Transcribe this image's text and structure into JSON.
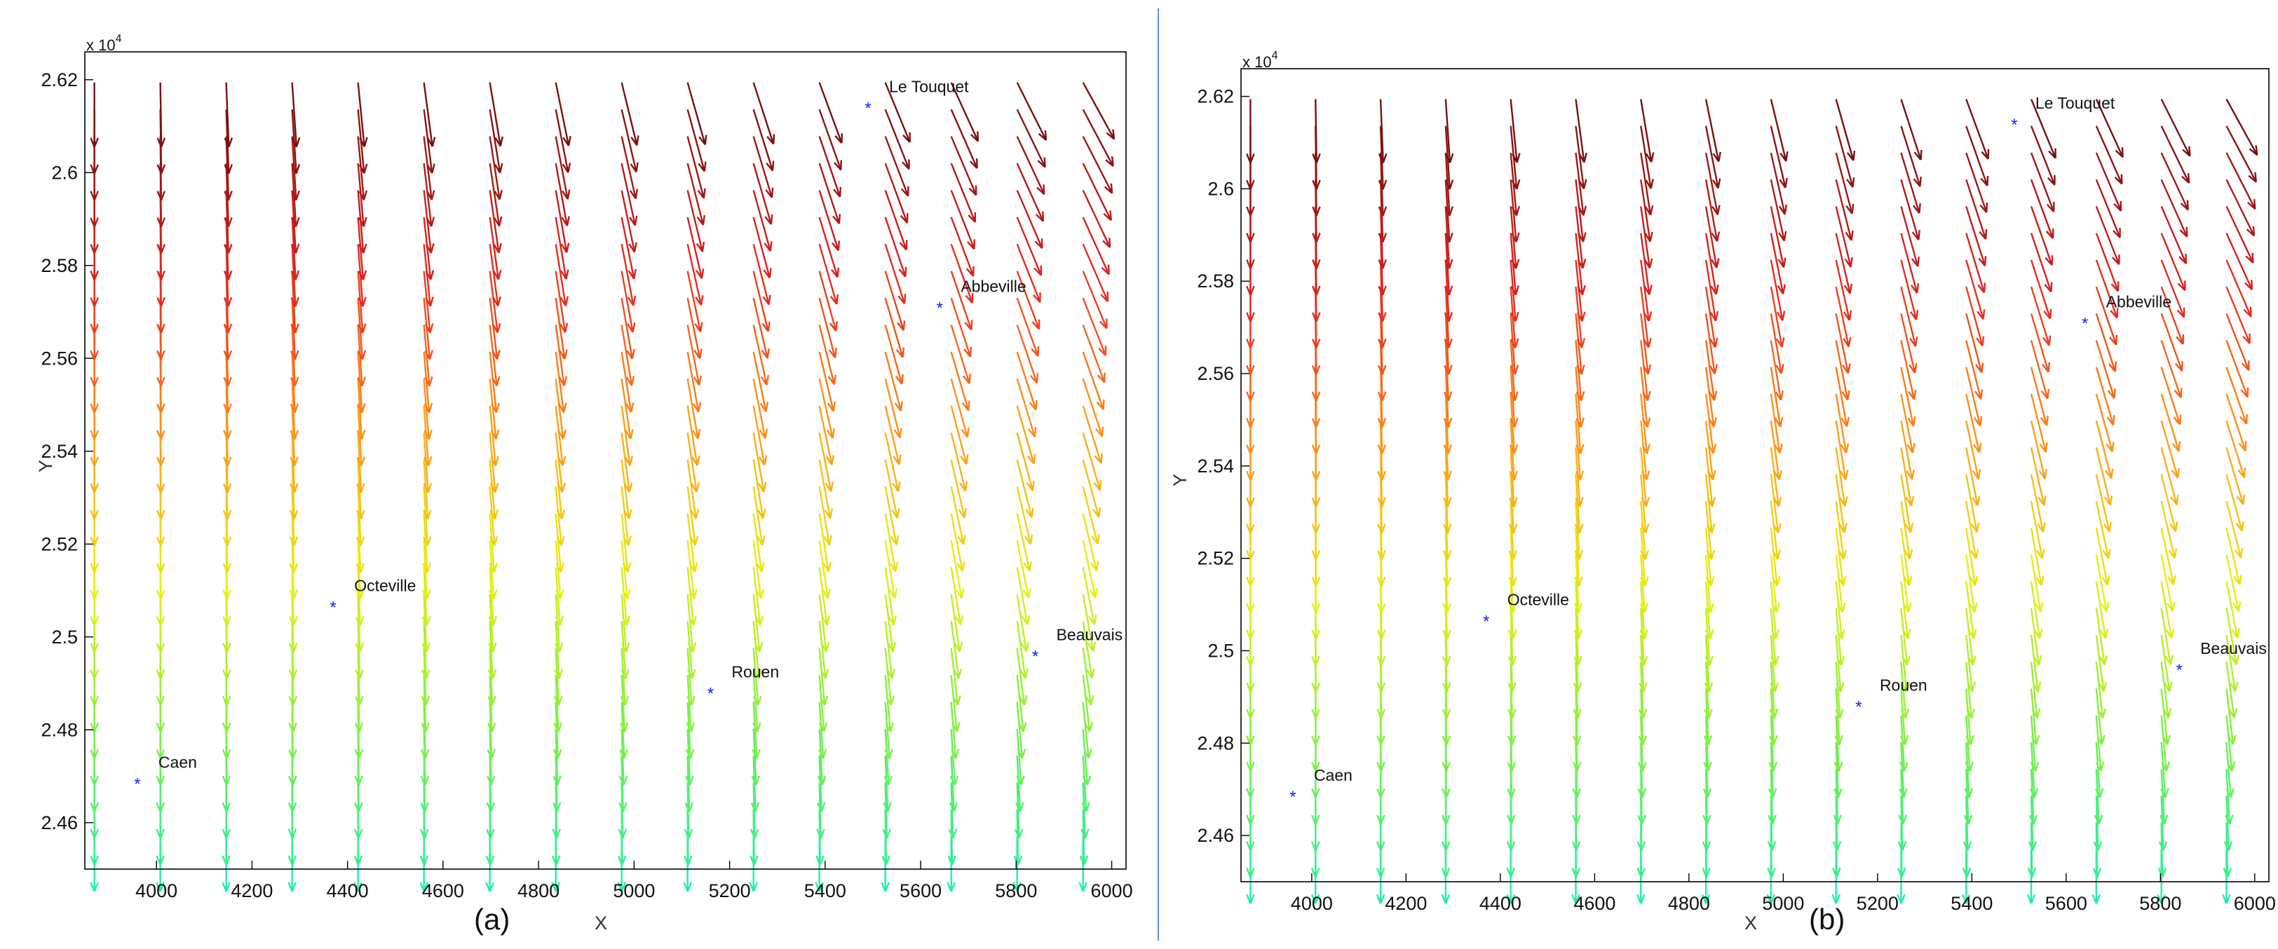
{
  "chart_data": [
    {
      "type": "quiver",
      "panel_label": "(a)",
      "xlabel": "X",
      "ylabel": "Y",
      "y_multiplier": "x 10",
      "y_multiplier_exponent": "4",
      "xlim": [
        3850,
        6030
      ],
      "ylim": [
        24500,
        26260
      ],
      "x_ticks": [
        4000,
        4200,
        4400,
        4600,
        4800,
        5000,
        5200,
        5400,
        5600,
        5800,
        6000
      ],
      "x_tick_labels": [
        "4000",
        "4200",
        "4400",
        "4600",
        "4800",
        "5000",
        "5200",
        "5400",
        "5600",
        "5800",
        "6000"
      ],
      "y_ticks": [
        24600,
        24800,
        25000,
        25200,
        25400,
        25600,
        25800,
        26000,
        26200
      ],
      "y_tick_labels": [
        "2.46",
        "2.48",
        "2.5",
        "2.52",
        "2.54",
        "2.56",
        "2.58",
        "2.6",
        "2.62"
      ],
      "grid": {
        "x0": 3870,
        "dx": 138,
        "nx": 16,
        "y0": 24570,
        "dy": 58,
        "ny": 29
      },
      "field_model": "u = 0.55*((x-3870)/2070)^1.3 * ((y-24570)/1680); v = -1; colour by y",
      "arrow_colors": [
        "#20f0a0",
        "#80f040",
        "#e8ef10",
        "#ff9418",
        "#e6231f",
        "#7a1010"
      ],
      "cities": [
        {
          "name": "Le Touquet",
          "x": 5490,
          "y": 26140
        },
        {
          "name": "Abbeville",
          "x": 5640,
          "y": 25710
        },
        {
          "name": "Octeville",
          "x": 4370,
          "y": 25065
        },
        {
          "name": "Beauvais",
          "x": 5840,
          "y": 24960
        },
        {
          "name": "Rouen",
          "x": 5160,
          "y": 24880
        },
        {
          "name": "Caen",
          "x": 3960,
          "y": 24685
        }
      ]
    },
    {
      "type": "quiver",
      "panel_label": "(b)",
      "xlabel": "X",
      "ylabel": "Y",
      "y_multiplier": "x 10",
      "y_multiplier_exponent": "4",
      "xlim": [
        3850,
        6030
      ],
      "ylim": [
        24500,
        26260
      ],
      "x_ticks": [
        4000,
        4200,
        4400,
        4600,
        4800,
        5000,
        5200,
        5400,
        5600,
        5800,
        6000
      ],
      "x_tick_labels": [
        "4000",
        "4200",
        "4400",
        "4600",
        "4800",
        "5000",
        "5200",
        "5400",
        "5600",
        "5800",
        "6000"
      ],
      "y_ticks": [
        24600,
        24800,
        25000,
        25200,
        25400,
        25600,
        25800,
        26000,
        26200
      ],
      "y_tick_labels": [
        "2.46",
        "2.48",
        "2.5",
        "2.52",
        "2.54",
        "2.56",
        "2.58",
        "2.6",
        "2.62"
      ],
      "grid": {
        "x0": 3870,
        "dx": 138,
        "nx": 16,
        "y0": 24570,
        "dy": 58,
        "ny": 29
      },
      "field_model": "u = 0.55*((x-3870)/2070)^1.3 * ((y-24570)/1680); v = -1; colour by y",
      "arrow_colors": [
        "#20f0a0",
        "#80f040",
        "#e8ef10",
        "#ff9418",
        "#e6231f",
        "#7a1010"
      ],
      "cities": [
        {
          "name": "Le Touquet",
          "x": 5490,
          "y": 26140
        },
        {
          "name": "Abbeville",
          "x": 5640,
          "y": 25710
        },
        {
          "name": "Octeville",
          "x": 4370,
          "y": 25065
        },
        {
          "name": "Beauvais",
          "x": 5840,
          "y": 24960
        },
        {
          "name": "Rouen",
          "x": 5160,
          "y": 24880
        },
        {
          "name": "Caen",
          "x": 3960,
          "y": 24685
        }
      ]
    }
  ],
  "colors": {
    "axis": "#000000",
    "city_marker": "#1020ff",
    "separator": "#5b8fd6"
  }
}
